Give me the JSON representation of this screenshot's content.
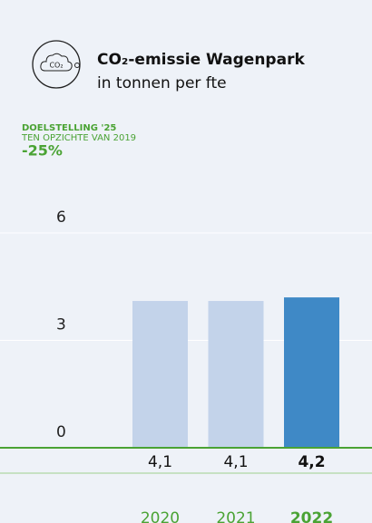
{
  "chart_data": {
    "type": "bar",
    "icon_text": "CO₂",
    "title": "CO₂-emissie Wagenpark",
    "subtitle": "in tonnen per fte",
    "annotation": {
      "label": "DOELSTELLING '25",
      "sublabel": "TEN OPZICHTE VAN 2019",
      "value": "-25%"
    },
    "categories": [
      "2020",
      "2021",
      "2022"
    ],
    "values": [
      4.1,
      4.1,
      4.2
    ],
    "value_labels": [
      "4,1",
      "4,1",
      "4,2"
    ],
    "colors": [
      "#c3d3ea",
      "#c3d3ea",
      "#3f89c6"
    ],
    "highlight": "2022",
    "ylim": [
      0,
      6
    ],
    "yticks": [
      0,
      3,
      6
    ],
    "grid": true
  }
}
